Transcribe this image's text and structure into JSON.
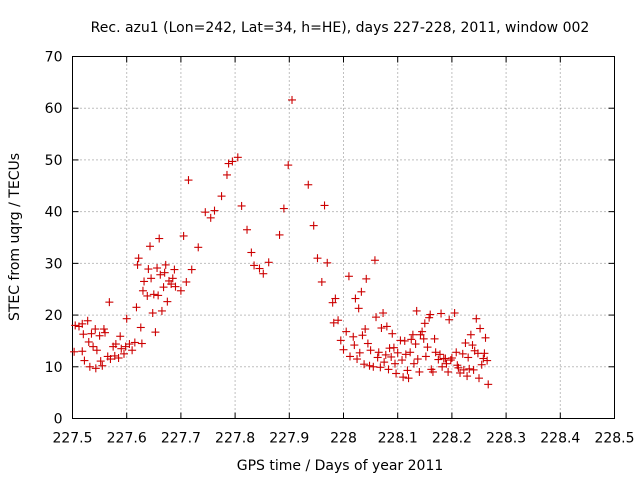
{
  "chart_data": {
    "type": "scatter",
    "title": "Rec. azu1 (Lon=242, Lat=34, h=HE), days 227-228, 2011, window 002",
    "xlabel": "GPS time / Days of year 2011",
    "ylabel": "STEC from uqrg / TECUs",
    "xlim": [
      227.5,
      228.5
    ],
    "ylim": [
      0,
      70
    ],
    "grid": true,
    "marker": "+",
    "color": "#cc0000",
    "xticks": [
      {
        "value": 227.5,
        "label": "227.5"
      },
      {
        "value": 227.6,
        "label": "227.6"
      },
      {
        "value": 227.7,
        "label": "227.7"
      },
      {
        "value": 227.8,
        "label": "227.8"
      },
      {
        "value": 227.9,
        "label": "227.9"
      },
      {
        "value": 228.0,
        "label": "228"
      },
      {
        "value": 228.1,
        "label": "228.1"
      },
      {
        "value": 228.2,
        "label": "228.2"
      },
      {
        "value": 228.3,
        "label": "228.3"
      },
      {
        "value": 228.4,
        "label": "228.4"
      },
      {
        "value": 228.5,
        "label": "228.5"
      }
    ],
    "yticks": [
      {
        "value": 0,
        "label": "0"
      },
      {
        "value": 10,
        "label": "10"
      },
      {
        "value": 20,
        "label": "20"
      },
      {
        "value": 30,
        "label": "30"
      },
      {
        "value": 40,
        "label": "40"
      },
      {
        "value": 50,
        "label": "50"
      },
      {
        "value": 60,
        "label": "60"
      },
      {
        "value": 70,
        "label": "70"
      }
    ],
    "points": [
      [
        227.503,
        12.9
      ],
      [
        227.505,
        18.0
      ],
      [
        227.512,
        17.8
      ],
      [
        227.518,
        18.3
      ],
      [
        227.518,
        13.0
      ],
      [
        227.52,
        16.3
      ],
      [
        227.522,
        11.2
      ],
      [
        227.528,
        18.9
      ],
      [
        227.53,
        14.8
      ],
      [
        227.532,
        10.0
      ],
      [
        227.535,
        16.4
      ],
      [
        227.538,
        13.9
      ],
      [
        227.542,
        17.3
      ],
      [
        227.543,
        9.7
      ],
      [
        227.545,
        13.2
      ],
      [
        227.55,
        16.0
      ],
      [
        227.552,
        11.1
      ],
      [
        227.555,
        10.2
      ],
      [
        227.558,
        17.3
      ],
      [
        227.56,
        16.6
      ],
      [
        227.565,
        12.0
      ],
      [
        227.568,
        22.5
      ],
      [
        227.57,
        11.5
      ],
      [
        227.575,
        13.9
      ],
      [
        227.578,
        12.1
      ],
      [
        227.58,
        14.4
      ],
      [
        227.585,
        11.7
      ],
      [
        227.588,
        15.9
      ],
      [
        227.59,
        13.5
      ],
      [
        227.595,
        12.5
      ],
      [
        227.598,
        13.9
      ],
      [
        227.6,
        19.3
      ],
      [
        227.605,
        14.4
      ],
      [
        227.61,
        13.2
      ],
      [
        227.615,
        14.7
      ],
      [
        227.618,
        21.5
      ],
      [
        227.62,
        29.7
      ],
      [
        227.622,
        31.0
      ],
      [
        227.626,
        17.6
      ],
      [
        227.628,
        14.5
      ],
      [
        227.63,
        24.7
      ],
      [
        227.632,
        26.5
      ],
      [
        227.638,
        23.7
      ],
      [
        227.64,
        28.9
      ],
      [
        227.643,
        33.3
      ],
      [
        227.645,
        27.1
      ],
      [
        227.648,
        20.4
      ],
      [
        227.65,
        24.0
      ],
      [
        227.653,
        16.7
      ],
      [
        227.656,
        29.1
      ],
      [
        227.658,
        23.8
      ],
      [
        227.66,
        34.8
      ],
      [
        227.662,
        27.8
      ],
      [
        227.665,
        20.8
      ],
      [
        227.668,
        25.4
      ],
      [
        227.67,
        28.2
      ],
      [
        227.672,
        29.7
      ],
      [
        227.675,
        22.6
      ],
      [
        227.678,
        26.6
      ],
      [
        227.682,
        26.0
      ],
      [
        227.685,
        27.1
      ],
      [
        227.688,
        28.8
      ],
      [
        227.69,
        25.5
      ],
      [
        227.7,
        24.7
      ],
      [
        227.705,
        35.3
      ],
      [
        227.71,
        26.4
      ],
      [
        227.714,
        46.1
      ],
      [
        227.72,
        28.8
      ],
      [
        227.732,
        33.1
      ],
      [
        227.745,
        39.9
      ],
      [
        227.755,
        38.8
      ],
      [
        227.762,
        40.2
      ],
      [
        227.775,
        43.0
      ],
      [
        227.785,
        47.1
      ],
      [
        227.788,
        49.3
      ],
      [
        227.795,
        49.7
      ],
      [
        227.805,
        50.5
      ],
      [
        227.812,
        41.1
      ],
      [
        227.822,
        36.5
      ],
      [
        227.83,
        32.1
      ],
      [
        227.835,
        29.6
      ],
      [
        227.845,
        29.0
      ],
      [
        227.852,
        28.0
      ],
      [
        227.862,
        30.2
      ],
      [
        227.882,
        35.5
      ],
      [
        227.89,
        40.6
      ],
      [
        227.898,
        49.0
      ],
      [
        227.905,
        61.6
      ],
      [
        227.935,
        45.2
      ],
      [
        227.945,
        37.3
      ],
      [
        227.952,
        31.0
      ],
      [
        227.96,
        26.4
      ],
      [
        227.965,
        41.2
      ],
      [
        227.97,
        30.1
      ],
      [
        227.98,
        22.4
      ],
      [
        227.982,
        18.5
      ],
      [
        227.985,
        23.2
      ],
      [
        227.99,
        19.0
      ],
      [
        227.995,
        15.1
      ],
      [
        228.0,
        13.3
      ],
      [
        228.005,
        16.8
      ],
      [
        228.01,
        27.5
      ],
      [
        228.012,
        12.0
      ],
      [
        228.018,
        15.8
      ],
      [
        228.02,
        14.2
      ],
      [
        228.022,
        23.2
      ],
      [
        228.025,
        11.5
      ],
      [
        228.028,
        21.3
      ],
      [
        228.03,
        12.7
      ],
      [
        228.033,
        24.5
      ],
      [
        228.035,
        16.1
      ],
      [
        228.038,
        10.5
      ],
      [
        228.04,
        17.3
      ],
      [
        228.042,
        27.0
      ],
      [
        228.045,
        14.5
      ],
      [
        228.048,
        10.2
      ],
      [
        228.05,
        13.2
      ],
      [
        228.055,
        10.0
      ],
      [
        228.058,
        30.6
      ],
      [
        228.06,
        19.6
      ],
      [
        228.063,
        11.8
      ],
      [
        228.065,
        12.8
      ],
      [
        228.068,
        9.9
      ],
      [
        228.07,
        17.5
      ],
      [
        228.073,
        20.4
      ],
      [
        228.075,
        10.9
      ],
      [
        228.078,
        12.3
      ],
      [
        228.08,
        17.8
      ],
      [
        228.083,
        9.5
      ],
      [
        228.085,
        13.6
      ],
      [
        228.088,
        11.9
      ],
      [
        228.09,
        16.4
      ],
      [
        228.093,
        13.7
      ],
      [
        228.095,
        10.6
      ],
      [
        228.097,
        8.7
      ],
      [
        228.1,
        12.7
      ],
      [
        228.105,
        15.1
      ],
      [
        228.108,
        11.3
      ],
      [
        228.11,
        8.0
      ],
      [
        228.113,
        15.0
      ],
      [
        228.115,
        12.4
      ],
      [
        228.118,
        9.3
      ],
      [
        228.12,
        7.8
      ],
      [
        228.123,
        12.8
      ],
      [
        228.125,
        15.3
      ],
      [
        228.128,
        16.2
      ],
      [
        228.13,
        10.6
      ],
      [
        228.133,
        14.4
      ],
      [
        228.135,
        20.8
      ],
      [
        228.137,
        11.5
      ],
      [
        228.14,
        9.0
      ],
      [
        228.142,
        16.2
      ],
      [
        228.145,
        16.8
      ],
      [
        228.148,
        15.4
      ],
      [
        228.15,
        18.4
      ],
      [
        228.152,
        12.0
      ],
      [
        228.155,
        13.8
      ],
      [
        228.158,
        19.5
      ],
      [
        228.16,
        20.1
      ],
      [
        228.162,
        9.5
      ],
      [
        228.165,
        9.0
      ],
      [
        228.168,
        15.4
      ],
      [
        228.17,
        12.8
      ],
      [
        228.175,
        11.4
      ],
      [
        228.178,
        12.4
      ],
      [
        228.18,
        20.3
      ],
      [
        228.182,
        10.0
      ],
      [
        228.185,
        11.6
      ],
      [
        228.188,
        11.6
      ],
      [
        228.19,
        10.6
      ],
      [
        228.193,
        9.0
      ],
      [
        228.195,
        19.1
      ],
      [
        228.198,
        11.3
      ],
      [
        228.2,
        11.7
      ],
      [
        228.205,
        20.4
      ],
      [
        228.208,
        12.8
      ],
      [
        228.21,
        10.3
      ],
      [
        228.212,
        9.8
      ],
      [
        228.215,
        8.8
      ],
      [
        228.22,
        12.5
      ],
      [
        228.222,
        9.4
      ],
      [
        228.225,
        14.6
      ],
      [
        228.228,
        8.2
      ],
      [
        228.23,
        11.8
      ],
      [
        228.232,
        9.6
      ],
      [
        228.235,
        16.2
      ],
      [
        228.238,
        14.2
      ],
      [
        228.24,
        9.4
      ],
      [
        228.242,
        13.1
      ],
      [
        228.245,
        19.3
      ],
      [
        228.248,
        12.6
      ],
      [
        228.25,
        7.8
      ],
      [
        228.252,
        17.4
      ],
      [
        228.255,
        10.4
      ],
      [
        228.258,
        11.6
      ],
      [
        228.26,
        12.6
      ],
      [
        228.262,
        15.6
      ],
      [
        228.265,
        11.2
      ],
      [
        228.267,
        6.6
      ]
    ]
  }
}
